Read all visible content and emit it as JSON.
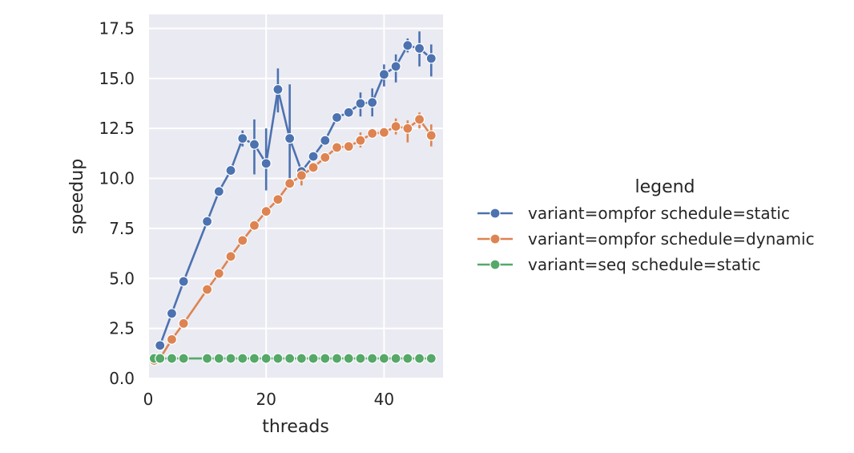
{
  "chart_data": {
    "type": "line",
    "xlabel": "threads",
    "ylabel": "speedup",
    "xlim": [
      0,
      50
    ],
    "ylim": [
      0,
      18.2
    ],
    "xticks": [
      0,
      20,
      40
    ],
    "xtick_labels": [
      "0",
      "20",
      "40"
    ],
    "yticks": [
      0,
      2.5,
      5,
      7.5,
      10,
      12.5,
      15,
      17.5
    ],
    "ytick_labels": [
      "0.0",
      "2.5",
      "5.0",
      "7.5",
      "10.0",
      "12.5",
      "15.0",
      "17.5"
    ],
    "grid": true,
    "legend": {
      "title": "legend",
      "placement": "right",
      "entries": [
        "variant=ompfor schedule=static",
        "variant=ompfor schedule=dynamic",
        "variant=seq schedule=static"
      ]
    },
    "series": [
      {
        "name": "variant=ompfor schedule=static",
        "color": "#4c72b0",
        "points": [
          {
            "x": 2,
            "y": 1.65
          },
          {
            "x": 4,
            "y": 3.25
          },
          {
            "x": 6,
            "y": 4.85
          },
          {
            "x": 10,
            "y": 7.85
          },
          {
            "x": 12,
            "y": 9.35
          },
          {
            "x": 14,
            "y": 10.4
          },
          {
            "x": 16,
            "y": 12.0,
            "err": [
              11.6,
              12.4
            ]
          },
          {
            "x": 18,
            "y": 11.7,
            "err": [
              10.2,
              12.95
            ]
          },
          {
            "x": 20,
            "y": 10.75,
            "err": [
              9.4,
              12.5
            ]
          },
          {
            "x": 22,
            "y": 14.45,
            "err": [
              13.3,
              15.5
            ]
          },
          {
            "x": 24,
            "y": 12.0,
            "err": [
              10.0,
              14.7
            ]
          },
          {
            "x": 26,
            "y": 10.35,
            "err": [
              10.05,
              10.6
            ]
          },
          {
            "x": 28,
            "y": 11.1
          },
          {
            "x": 30,
            "y": 11.9
          },
          {
            "x": 32,
            "y": 13.05
          },
          {
            "x": 34,
            "y": 13.3
          },
          {
            "x": 36,
            "y": 13.75,
            "err": [
              13.1,
              14.3
            ]
          },
          {
            "x": 38,
            "y": 13.8,
            "err": [
              13.1,
              14.5
            ]
          },
          {
            "x": 40,
            "y": 15.2,
            "err": [
              14.6,
              15.7
            ]
          },
          {
            "x": 42,
            "y": 15.6,
            "err": [
              14.8,
              16.2
            ]
          },
          {
            "x": 44,
            "y": 16.65,
            "err": [
              16.3,
              17.0
            ]
          },
          {
            "x": 46,
            "y": 16.5,
            "err": [
              15.6,
              17.35
            ]
          },
          {
            "x": 48,
            "y": 16.0,
            "err": [
              15.1,
              16.7
            ]
          }
        ]
      },
      {
        "name": "variant=ompfor schedule=dynamic",
        "color": "#dd8452",
        "points": [
          {
            "x": 1,
            "y": 0.9
          },
          {
            "x": 2,
            "y": 1.0
          },
          {
            "x": 4,
            "y": 1.95
          },
          {
            "x": 6,
            "y": 2.75
          },
          {
            "x": 10,
            "y": 4.45
          },
          {
            "x": 12,
            "y": 5.25
          },
          {
            "x": 14,
            "y": 6.1
          },
          {
            "x": 16,
            "y": 6.9
          },
          {
            "x": 18,
            "y": 7.65
          },
          {
            "x": 20,
            "y": 8.35
          },
          {
            "x": 22,
            "y": 8.95
          },
          {
            "x": 24,
            "y": 9.75
          },
          {
            "x": 26,
            "y": 10.15,
            "err": [
              9.65,
              10.45
            ]
          },
          {
            "x": 28,
            "y": 10.55
          },
          {
            "x": 30,
            "y": 11.05
          },
          {
            "x": 32,
            "y": 11.55
          },
          {
            "x": 34,
            "y": 11.6
          },
          {
            "x": 36,
            "y": 11.9,
            "err": [
              11.55,
              12.3
            ]
          },
          {
            "x": 38,
            "y": 12.25
          },
          {
            "x": 40,
            "y": 12.3
          },
          {
            "x": 42,
            "y": 12.6,
            "err": [
              12.2,
              13.0
            ]
          },
          {
            "x": 44,
            "y": 12.5,
            "err": [
              11.8,
              12.9
            ]
          },
          {
            "x": 46,
            "y": 12.95,
            "err": [
              12.5,
              13.3
            ]
          },
          {
            "x": 48,
            "y": 12.15,
            "err": [
              11.6,
              12.7
            ]
          }
        ]
      },
      {
        "name": "variant=seq schedule=static",
        "color": "#55a868",
        "points": [
          {
            "x": 1,
            "y": 1.0
          },
          {
            "x": 2,
            "y": 1.0
          },
          {
            "x": 4,
            "y": 1.0
          },
          {
            "x": 6,
            "y": 1.0
          },
          {
            "x": 10,
            "y": 1.0
          },
          {
            "x": 12,
            "y": 1.0
          },
          {
            "x": 14,
            "y": 1.0
          },
          {
            "x": 16,
            "y": 1.0
          },
          {
            "x": 18,
            "y": 1.0
          },
          {
            "x": 20,
            "y": 1.0
          },
          {
            "x": 22,
            "y": 1.0
          },
          {
            "x": 24,
            "y": 1.0
          },
          {
            "x": 26,
            "y": 1.0
          },
          {
            "x": 28,
            "y": 1.0
          },
          {
            "x": 30,
            "y": 1.0
          },
          {
            "x": 32,
            "y": 1.0
          },
          {
            "x": 34,
            "y": 1.0
          },
          {
            "x": 36,
            "y": 1.0
          },
          {
            "x": 38,
            "y": 1.0
          },
          {
            "x": 40,
            "y": 1.0
          },
          {
            "x": 42,
            "y": 1.0
          },
          {
            "x": 44,
            "y": 1.0
          },
          {
            "x": 46,
            "y": 1.0
          },
          {
            "x": 48,
            "y": 1.0
          }
        ]
      }
    ]
  }
}
